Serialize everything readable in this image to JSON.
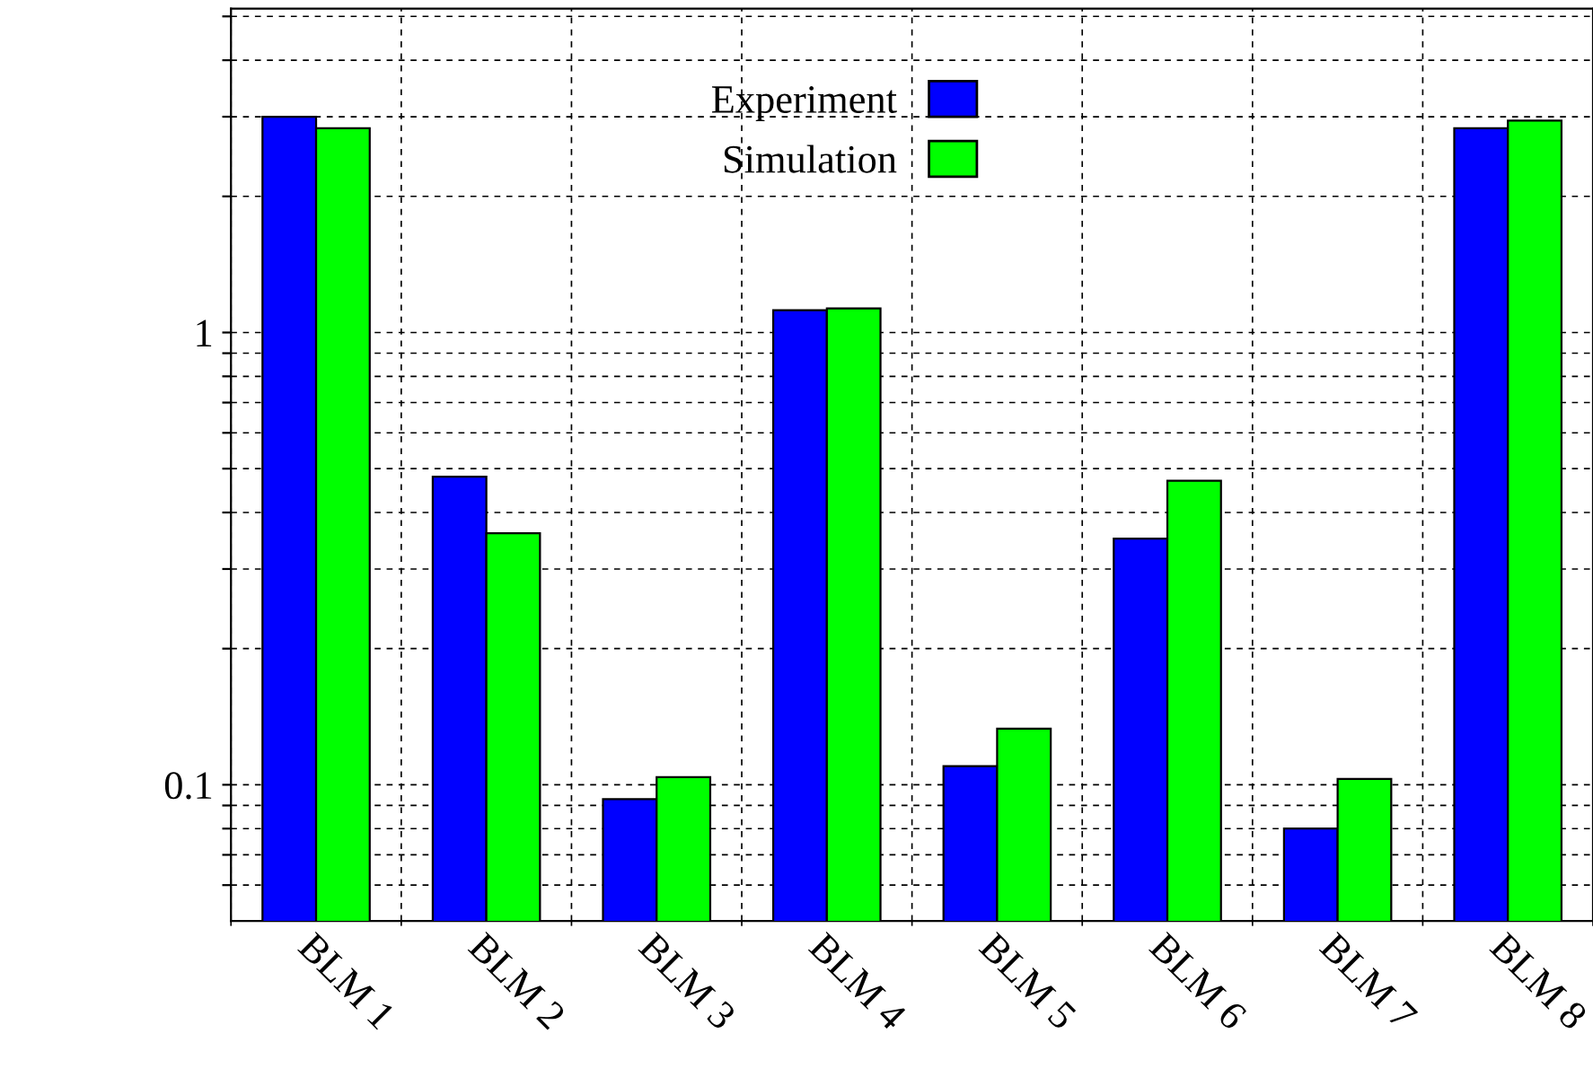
{
  "chart_data": {
    "type": "bar",
    "categories": [
      "BLM 1",
      "BLM 2",
      "BLM 3",
      "BLM 4",
      "BLM 5",
      "BLM 6",
      "BLM 7",
      "BLM 8"
    ],
    "series": [
      {
        "name": "Experiment",
        "color": "#0000ff",
        "values": [
          3.0,
          0.48,
          0.093,
          1.12,
          0.11,
          0.35,
          0.08,
          2.83
        ]
      },
      {
        "name": "Simulation",
        "color": "#00ff00",
        "values": [
          2.83,
          0.36,
          0.104,
          1.13,
          0.133,
          0.47,
          0.103,
          2.94
        ]
      }
    ],
    "log": "y",
    "ylim": [
      0.05,
      5.2
    ],
    "yticks": [
      {
        "value": 0.06,
        "label": null
      },
      {
        "value": 0.07,
        "label": null
      },
      {
        "value": 0.08,
        "label": null
      },
      {
        "value": 0.09,
        "label": null
      },
      0.1,
      {
        "value": 0.2,
        "label": null
      },
      {
        "value": 0.3,
        "label": null
      },
      {
        "value": 0.4,
        "label": null
      },
      {
        "value": 0.5,
        "label": null
      },
      {
        "value": 0.6,
        "label": null
      },
      {
        "value": 0.7,
        "label": null
      },
      {
        "value": 0.8,
        "label": null
      },
      {
        "value": 0.9,
        "label": null
      },
      1,
      {
        "value": 2,
        "label": null
      },
      {
        "value": 3,
        "label": null
      },
      {
        "value": 4,
        "label": null
      },
      {
        "value": 5,
        "label": null
      }
    ],
    "grid": true,
    "legend": "top"
  }
}
